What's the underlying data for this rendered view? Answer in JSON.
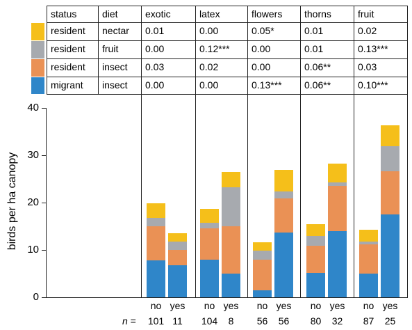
{
  "chart_data": {
    "type": "bar",
    "stacked": true,
    "ylabel": "birds per ha canopy",
    "ylim": [
      0,
      40
    ],
    "yticks": [
      0,
      10,
      20,
      30,
      40
    ],
    "groups": [
      "exotic",
      "latex",
      "flowers",
      "thorns",
      "fruit"
    ],
    "categories": [
      "no",
      "yes"
    ],
    "n_prefix": "n =",
    "n": [
      [
        "101",
        "11"
      ],
      [
        "104",
        "8"
      ],
      [
        "56",
        "56"
      ],
      [
        "80",
        "32"
      ],
      [
        "87",
        "25"
      ]
    ],
    "table_headers": [
      "status",
      "diet",
      "exotic",
      "latex",
      "flowers",
      "thorns",
      "fruit"
    ],
    "series": [
      {
        "status": "migrant",
        "diet": "insect",
        "color": "#2f86c9",
        "coefficients": [
          "0.00",
          "0.00",
          "0.13***",
          "0.06**",
          "0.10***"
        ],
        "values": [
          [
            7.8,
            6.8
          ],
          [
            8.0,
            5.0
          ],
          [
            1.5,
            13.7
          ],
          [
            5.1,
            14.0
          ],
          [
            5.0,
            17.5
          ]
        ]
      },
      {
        "status": "resident",
        "diet": "insect",
        "color": "#ea9155",
        "coefficients": [
          "0.03",
          "0.02",
          "0.00",
          "0.06**",
          "0.03"
        ],
        "values": [
          [
            7.2,
            3.2
          ],
          [
            6.5,
            10.0
          ],
          [
            6.5,
            7.2
          ],
          [
            5.8,
            9.6
          ],
          [
            6.2,
            9.1
          ]
        ]
      },
      {
        "status": "resident",
        "diet": "fruit",
        "color": "#a7aaaf",
        "coefficients": [
          "0.00",
          "0.12***",
          "0.00",
          "0.01",
          "0.13***"
        ],
        "values": [
          [
            1.8,
            1.8
          ],
          [
            1.2,
            8.3
          ],
          [
            1.8,
            1.5
          ],
          [
            2.0,
            0.7
          ],
          [
            0.5,
            5.3
          ]
        ]
      },
      {
        "status": "resident",
        "diet": "nectar",
        "color": "#f5bf1a",
        "coefficients": [
          "0.01",
          "0.00",
          "0.05*",
          "0.01",
          "0.02"
        ],
        "values": [
          [
            3.1,
            1.8
          ],
          [
            3.0,
            3.1
          ],
          [
            1.8,
            4.5
          ],
          [
            2.5,
            4.0
          ],
          [
            2.6,
            4.4
          ]
        ]
      }
    ],
    "table_row_order": [
      3,
      2,
      1,
      0
    ]
  }
}
